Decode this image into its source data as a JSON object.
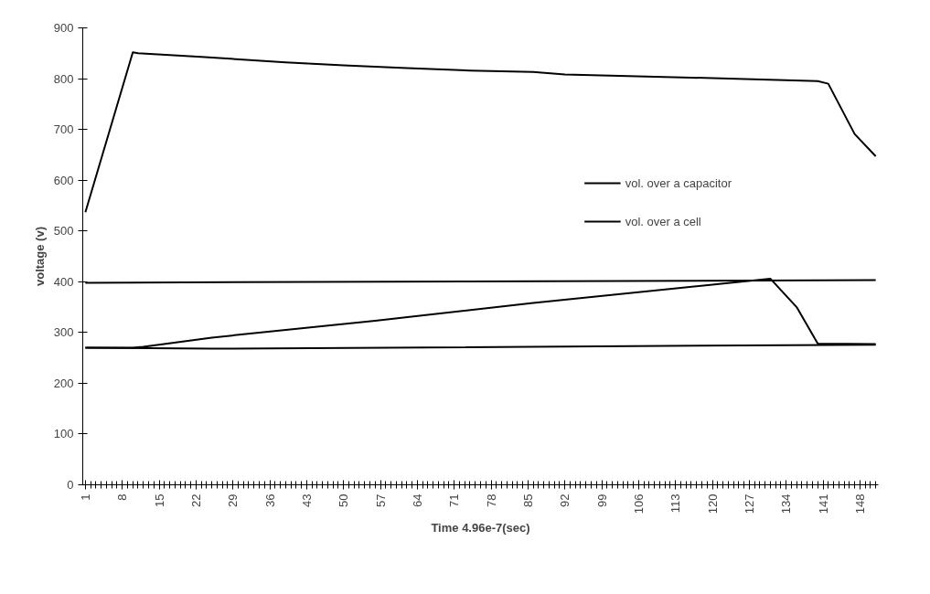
{
  "chart_data": {
    "type": "line",
    "xlabel": "Time 4.96e-7(sec)",
    "ylabel": "voltage (v)",
    "xlim": [
      0.5,
      151.5
    ],
    "xticks": [
      1,
      8,
      15,
      22,
      29,
      36,
      43,
      50,
      57,
      64,
      71,
      78,
      85,
      92,
      99,
      106,
      113,
      120,
      127,
      134,
      141,
      148
    ],
    "ylim": [
      0,
      900
    ],
    "yticks": [
      0,
      100,
      200,
      300,
      400,
      500,
      600,
      700,
      800,
      900
    ],
    "grid": false,
    "legend": "top right",
    "marker": "none",
    "line_style": "solid",
    "series": [
      {
        "name": "vol. over a capacitor",
        "color": "#000000",
        "x": [
          1,
          10,
          11,
          23,
          39,
          50,
          62,
          74,
          86,
          92,
          116,
          140,
          142,
          147,
          151
        ],
        "values": [
          537,
          852,
          850,
          843,
          832,
          826,
          821,
          816,
          813,
          808,
          802,
          795,
          790,
          691,
          647
        ]
      },
      {
        "name": "vol. over a cell",
        "color": "#000000",
        "x": [
          1,
          10,
          12,
          25,
          56,
          86,
          131,
          136,
          140,
          151
        ],
        "values": [
          270,
          270,
          272,
          290,
          323,
          358,
          406,
          350,
          278,
          277
        ]
      },
      {
        "color": "#000000",
        "x": [
          1,
          151
        ],
        "values": [
          398,
          403
        ]
      },
      {
        "color": "#000000",
        "x": [
          1,
          25,
          151
        ],
        "values": [
          270,
          268,
          276
        ]
      }
    ]
  }
}
